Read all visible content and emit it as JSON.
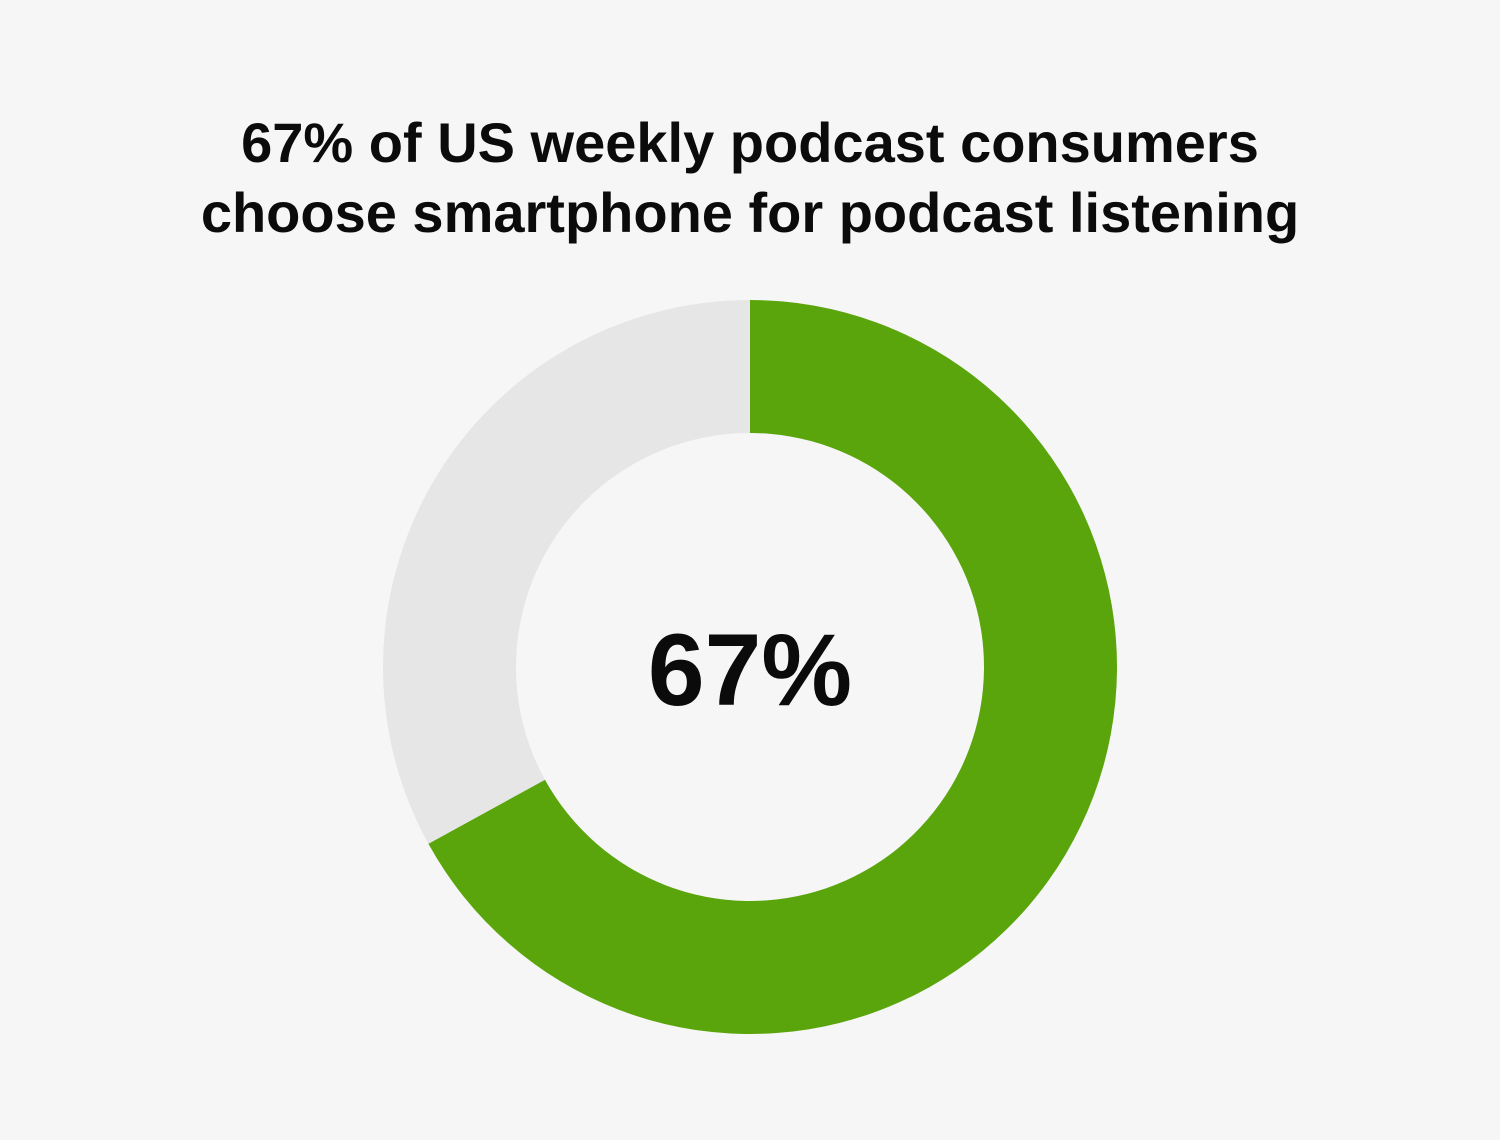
{
  "title_lines": [
    "67% of US weekly podcast consumers",
    "choose smartphone for podcast listening"
  ],
  "chart_data": {
    "type": "pie",
    "variant": "donut",
    "slices": [
      {
        "value": 67,
        "color": "#59a50b"
      },
      {
        "value": 33,
        "color": "#e6e6e6"
      }
    ],
    "center_label": "67%"
  }
}
